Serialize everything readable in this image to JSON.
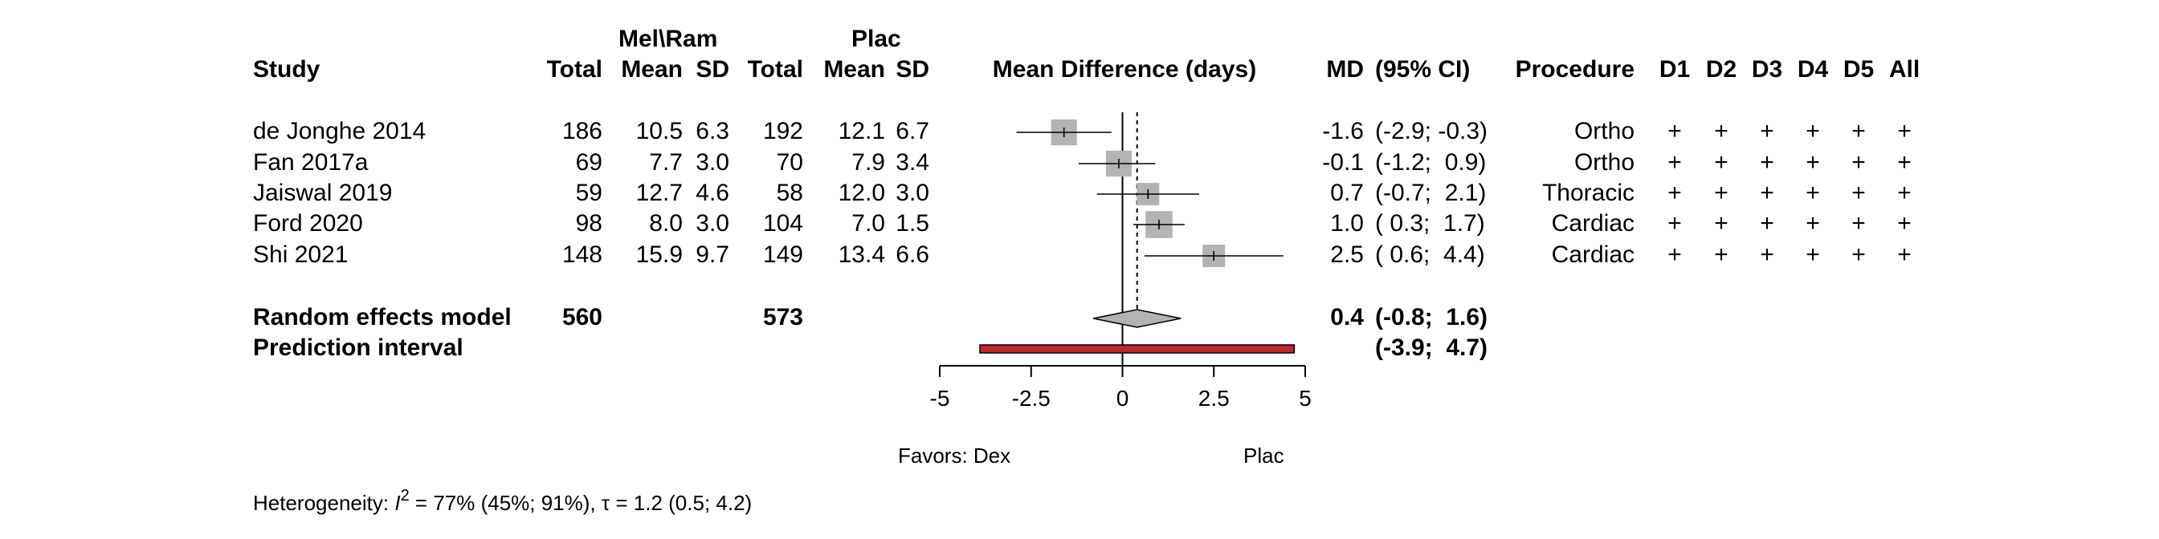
{
  "header": {
    "group1": "Mel\\Ram",
    "group2": "Plac",
    "study": "Study",
    "total1": "Total",
    "mean1": "Mean",
    "sd1": "SD",
    "total2": "Total",
    "mean2": "Mean",
    "sd2": "SD",
    "plot_title": "Mean Difference (days)",
    "md": "MD",
    "ci": "(95% CI)",
    "procedure": "Procedure",
    "rob": [
      "D1",
      "D2",
      "D3",
      "D4",
      "D5",
      "All"
    ]
  },
  "chart_data": {
    "type": "forest",
    "xlabel": "Mean Difference (days)",
    "xlim": [
      -5,
      5
    ],
    "ticks": [
      -5,
      -2.5,
      0,
      2.5,
      5
    ],
    "tick_labels": [
      "-5",
      "-2.5",
      "0",
      "2.5",
      "5"
    ],
    "reference_line": 0,
    "pooled_line": 0.4,
    "studies": [
      {
        "name": "de Jonghe 2014",
        "total1": "186",
        "mean1": "10.5",
        "sd1": "6.3",
        "total2": "192",
        "mean2": "12.1",
        "sd2": "6.7",
        "md": -1.6,
        "lo": -2.9,
        "hi": -0.3,
        "md_text": "-1.6",
        "ci_text": "(-2.9; -0.3)",
        "procedure": "Ortho",
        "weight": 1.15,
        "rob": [
          "+",
          "+",
          "+",
          "+",
          "+",
          "+"
        ]
      },
      {
        "name": "Fan 2017a",
        "total1": "69",
        "mean1": "7.7",
        "sd1": "3.0",
        "total2": "70",
        "mean2": "7.9",
        "sd2": "3.4",
        "md": -0.1,
        "lo": -1.2,
        "hi": 0.9,
        "md_text": "-0.1",
        "ci_text": "(-1.2;  0.9)",
        "procedure": "Ortho",
        "weight": 1.15,
        "rob": [
          "+",
          "+",
          "+",
          "+",
          "+",
          "+"
        ]
      },
      {
        "name": "Jaiswal 2019",
        "total1": "59",
        "mean1": "12.7",
        "sd1": "4.6",
        "total2": "58",
        "mean2": "12.0",
        "sd2": "3.0",
        "md": 0.7,
        "lo": -0.7,
        "hi": 2.1,
        "md_text": "0.7",
        "ci_text": "(-0.7;  2.1)",
        "procedure": "Thoracic",
        "weight": 1.0,
        "rob": [
          "+",
          "+",
          "+",
          "+",
          "+",
          "+"
        ]
      },
      {
        "name": "Ford 2020",
        "total1": "98",
        "mean1": "8.0",
        "sd1": "3.0",
        "total2": "104",
        "mean2": "7.0",
        "sd2": "1.5",
        "md": 1.0,
        "lo": 0.3,
        "hi": 1.7,
        "md_text": "1.0",
        "ci_text": "( 0.3;  1.7)",
        "procedure": "Cardiac",
        "weight": 1.2,
        "rob": [
          "+",
          "+",
          "+",
          "+",
          "+",
          "+"
        ]
      },
      {
        "name": "Shi 2021",
        "total1": "148",
        "mean1": "15.9",
        "sd1": "9.7",
        "total2": "149",
        "mean2": "13.4",
        "sd2": "6.6",
        "md": 2.5,
        "lo": 0.6,
        "hi": 4.4,
        "md_text": "2.5",
        "ci_text": "( 0.6;  4.4)",
        "procedure": "Cardiac",
        "weight": 1.0,
        "rob": [
          "+",
          "+",
          "+",
          "+",
          "+",
          "+"
        ]
      }
    ],
    "pooled": {
      "name": "Random effects model",
      "total1": "560",
      "total2": "573",
      "md": 0.4,
      "lo": -0.8,
      "hi": 1.6,
      "md_text": "0.4",
      "ci_text": "(-0.8;  1.6)"
    },
    "prediction": {
      "name": "Prediction interval",
      "lo": -3.9,
      "hi": 4.7,
      "ci_text": "(-3.9;  4.7)"
    },
    "favors_left": "Favors: Dex",
    "favors_right": "Plac",
    "colors": {
      "square": "#b3b3b3",
      "diamond": "#b3b3b3",
      "prediction": "#c1272d",
      "line": "#000000"
    }
  },
  "heterogeneity": {
    "prefix": "Heterogeneity: ",
    "i2_symbol": "I",
    "i2_sup": "2",
    "i2_text": " = 77% (45%; 91%), ",
    "tau_text": "τ = 1.2 (0.5; 4.2)"
  }
}
